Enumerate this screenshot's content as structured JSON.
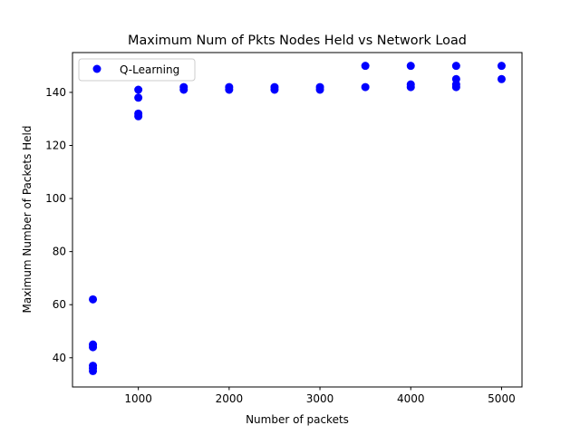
{
  "chart_data": {
    "type": "scatter",
    "title": "Maximum Num of Pkts Nodes Held vs Network Load",
    "xlabel": "Number of packets",
    "ylabel": "Maximum Number of Packets Held",
    "xlim": [
      275,
      5225
    ],
    "ylim": [
      29,
      155
    ],
    "xticks": [
      1000,
      2000,
      3000,
      4000,
      5000
    ],
    "yticks": [
      40,
      60,
      80,
      100,
      120,
      140
    ],
    "grid": false,
    "legend_position": "top-left",
    "series": [
      {
        "name": "Q-Learning",
        "color": "#0000ff",
        "marker": "circle",
        "points": [
          {
            "x": 500,
            "y": 62
          },
          {
            "x": 500,
            "y": 45
          },
          {
            "x": 500,
            "y": 44
          },
          {
            "x": 500,
            "y": 37
          },
          {
            "x": 500,
            "y": 36
          },
          {
            "x": 500,
            "y": 35
          },
          {
            "x": 1000,
            "y": 141
          },
          {
            "x": 1000,
            "y": 138
          },
          {
            "x": 1000,
            "y": 132
          },
          {
            "x": 1000,
            "y": 131
          },
          {
            "x": 1500,
            "y": 142
          },
          {
            "x": 1500,
            "y": 141
          },
          {
            "x": 2000,
            "y": 142
          },
          {
            "x": 2000,
            "y": 141
          },
          {
            "x": 2500,
            "y": 142
          },
          {
            "x": 2500,
            "y": 141
          },
          {
            "x": 3000,
            "y": 142
          },
          {
            "x": 3000,
            "y": 141
          },
          {
            "x": 3500,
            "y": 150
          },
          {
            "x": 3500,
            "y": 142
          },
          {
            "x": 4000,
            "y": 150
          },
          {
            "x": 4000,
            "y": 143
          },
          {
            "x": 4000,
            "y": 142
          },
          {
            "x": 4500,
            "y": 150
          },
          {
            "x": 4500,
            "y": 145
          },
          {
            "x": 4500,
            "y": 143
          },
          {
            "x": 4500,
            "y": 142
          },
          {
            "x": 5000,
            "y": 150
          },
          {
            "x": 5000,
            "y": 145
          }
        ]
      }
    ]
  }
}
